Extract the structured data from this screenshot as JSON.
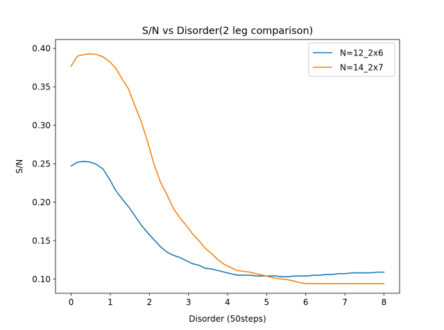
{
  "chart_data": {
    "type": "line",
    "title": "S/N vs Disorder(2 leg comparison)",
    "xlabel": "Disorder (50steps)",
    "ylabel": "S/N",
    "xlim": [
      -0.4,
      8.4
    ],
    "ylim": [
      0.0815,
      0.4115
    ],
    "xticks": [
      0,
      1,
      2,
      3,
      4,
      5,
      6,
      7,
      8
    ],
    "xtick_labels": [
      "0",
      "1",
      "2",
      "3",
      "4",
      "5",
      "6",
      "7",
      "8"
    ],
    "yticks": [
      0.1,
      0.15,
      0.2,
      0.25,
      0.3,
      0.35,
      0.4
    ],
    "ytick_labels": [
      "0.10",
      "0.15",
      "0.20",
      "0.25",
      "0.30",
      "0.35",
      "0.40"
    ],
    "grid": false,
    "legend_position": "top-right",
    "series": [
      {
        "name": "N=12_2x6",
        "color": "#1f77b4",
        "x": [
          0,
          0.163,
          0.327,
          0.49,
          0.653,
          0.816,
          0.98,
          1.143,
          1.306,
          1.469,
          1.633,
          1.796,
          1.959,
          2.122,
          2.286,
          2.449,
          2.612,
          2.776,
          2.939,
          3.102,
          3.265,
          3.429,
          3.592,
          3.755,
          3.918,
          4.082,
          4.245,
          4.408,
          4.571,
          4.735,
          4.898,
          5.061,
          5.224,
          5.388,
          5.551,
          5.714,
          5.878,
          6.041,
          6.204,
          6.367,
          6.531,
          6.694,
          6.857,
          7.02,
          7.184,
          7.347,
          7.51,
          7.673,
          7.837,
          8.0
        ],
        "y": [
          0.247,
          0.252,
          0.253,
          0.252,
          0.249,
          0.243,
          0.23,
          0.215,
          0.204,
          0.194,
          0.182,
          0.17,
          0.16,
          0.151,
          0.142,
          0.135,
          0.131,
          0.128,
          0.124,
          0.12,
          0.118,
          0.114,
          0.113,
          0.111,
          0.109,
          0.107,
          0.105,
          0.105,
          0.105,
          0.104,
          0.104,
          0.104,
          0.104,
          0.103,
          0.103,
          0.104,
          0.104,
          0.104,
          0.105,
          0.105,
          0.106,
          0.106,
          0.107,
          0.107,
          0.108,
          0.108,
          0.108,
          0.108,
          0.109,
          0.109
        ]
      },
      {
        "name": "N=14_2x7",
        "color": "#ff7f0e",
        "x": [
          0,
          0.163,
          0.327,
          0.49,
          0.653,
          0.816,
          0.98,
          1.143,
          1.306,
          1.469,
          1.633,
          1.796,
          1.959,
          2.122,
          2.286,
          2.449,
          2.612,
          2.776,
          2.939,
          3.102,
          3.265,
          3.429,
          3.592,
          3.755,
          3.918,
          4.082,
          4.245,
          4.408,
          4.571,
          4.735,
          4.898,
          5.061,
          5.224,
          5.388,
          5.551,
          5.714,
          5.878,
          6.041,
          6.204,
          6.367,
          6.531,
          6.694,
          6.857,
          7.02,
          7.184,
          7.347,
          7.51,
          7.673,
          7.837,
          8.0
        ],
        "y": [
          0.377,
          0.39,
          0.392,
          0.393,
          0.392,
          0.389,
          0.383,
          0.374,
          0.36,
          0.347,
          0.325,
          0.304,
          0.278,
          0.249,
          0.226,
          0.21,
          0.192,
          0.18,
          0.17,
          0.159,
          0.15,
          0.14,
          0.133,
          0.125,
          0.119,
          0.115,
          0.111,
          0.11,
          0.109,
          0.107,
          0.105,
          0.103,
          0.101,
          0.1,
          0.099,
          0.097,
          0.095,
          0.094,
          0.094,
          0.094,
          0.094,
          0.094,
          0.094,
          0.094,
          0.094,
          0.094,
          0.094,
          0.094,
          0.094,
          0.094
        ]
      }
    ]
  }
}
